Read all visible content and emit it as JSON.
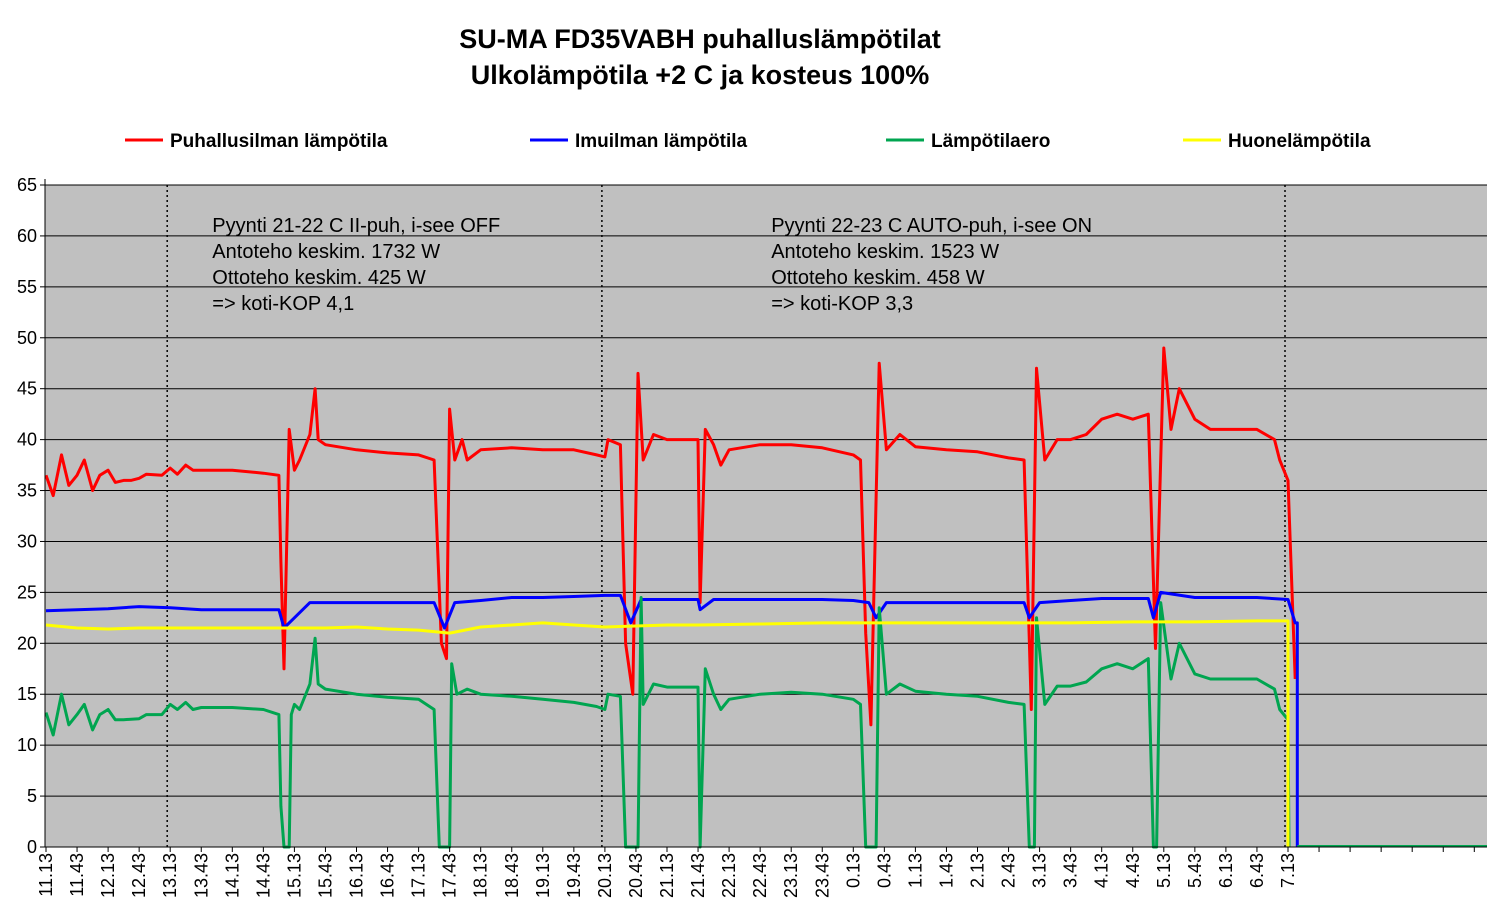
{
  "chart_data": {
    "type": "line",
    "title": "SU-MA FD35VABH puhalluslämpötilat",
    "subtitle": "Ulkolämpötila +2 C ja kosteus 100%",
    "ylim": [
      0,
      65
    ],
    "y_ticks": [
      0,
      5,
      10,
      15,
      20,
      25,
      30,
      35,
      40,
      45,
      50,
      55,
      60,
      65
    ],
    "x_time_ticks": [
      "11.13",
      "11.43",
      "12.13",
      "12.43",
      "13.13",
      "13.43",
      "14.13",
      "14.43",
      "15.13",
      "15.43",
      "16.13",
      "16.43",
      "17.13",
      "17.43",
      "18.13",
      "18.43",
      "19.13",
      "19.43",
      "20.13",
      "20.43",
      "21.13",
      "21.43",
      "22.13",
      "22.43",
      "23.13",
      "23.43",
      "0.13",
      "0.43",
      "1.13",
      "1.43",
      "2.13",
      "2.43",
      "3.13",
      "3.43",
      "4.13",
      "4.43",
      "5.13",
      "5.43",
      "6.13",
      "6.43",
      "7.13"
    ],
    "grid": true,
    "legend_position": "top",
    "markers_at": [
      "13.13",
      "20.13",
      "7.13"
    ],
    "annotations": [
      {
        "at": "14.13",
        "lines": [
          "Pyynti  21-22 C II-puh,  i-see OFF",
          "Antoteho keskim.  1732 W",
          "Ottoteho keskim.  425 W",
          "=> koti-KOP 4,1"
        ]
      },
      {
        "at": "23.13",
        "lines": [
          "Pyynti  22-23 C AUTO-puh,  i-see ON",
          "Antoteho keskim.  1523 W",
          "Ottoteho keskim.  458 W",
          "=> koti-KOP 3,3"
        ]
      }
    ],
    "series": [
      {
        "name": "Puhallusilman lämpötila",
        "color": "#ff0000",
        "points": [
          [
            "11.13",
            36.5
          ],
          [
            "11.20",
            34.5
          ],
          [
            "11.28",
            38.5
          ],
          [
            "11.35",
            35.5
          ],
          [
            "11.43",
            36.5
          ],
          [
            "11.50",
            38
          ],
          [
            "11.58",
            35
          ],
          [
            "12.05",
            36.5
          ],
          [
            "12.13",
            37
          ],
          [
            "12.20",
            35.8
          ],
          [
            "12.28",
            36
          ],
          [
            "12.35",
            36
          ],
          [
            "12.43",
            36.2
          ],
          [
            "12.50",
            36.6
          ],
          [
            "13.05",
            36.5
          ],
          [
            "13.13",
            37.2
          ],
          [
            "13.20",
            36.6
          ],
          [
            "13.28",
            37.5
          ],
          [
            "13.35",
            37
          ],
          [
            "13.43",
            37
          ],
          [
            "14.13",
            37
          ],
          [
            "14.43",
            36.7
          ],
          [
            "14.58",
            36.5
          ],
          [
            "15.00",
            28
          ],
          [
            "15.03",
            17.5
          ],
          [
            "15.08",
            41
          ],
          [
            "15.13",
            37
          ],
          [
            "15.18",
            38
          ],
          [
            "15.28",
            40.5
          ],
          [
            "15.33",
            45
          ],
          [
            "15.36",
            40
          ],
          [
            "15.43",
            39.5
          ],
          [
            "16.13",
            39
          ],
          [
            "16.43",
            38.7
          ],
          [
            "17.13",
            38.5
          ],
          [
            "17.28",
            38
          ],
          [
            "17.35",
            20
          ],
          [
            "17.40",
            18.5
          ],
          [
            "17.43",
            43
          ],
          [
            "17.48",
            38
          ],
          [
            "17.55",
            40
          ],
          [
            "18.00",
            38
          ],
          [
            "18.13",
            39
          ],
          [
            "18.43",
            39.2
          ],
          [
            "19.13",
            39
          ],
          [
            "19.43",
            39
          ],
          [
            "20.05",
            38.5
          ],
          [
            "20.13",
            38.3
          ],
          [
            "20.16",
            40
          ],
          [
            "20.28",
            39.5
          ],
          [
            "20.33",
            20
          ],
          [
            "20.40",
            15
          ],
          [
            "20.45",
            46.5
          ],
          [
            "20.50",
            38
          ],
          [
            "21.00",
            40.5
          ],
          [
            "21.13",
            40
          ],
          [
            "21.43",
            40
          ],
          [
            "21.45",
            24
          ],
          [
            "21.50",
            41
          ],
          [
            "21.58",
            39.5
          ],
          [
            "22.05",
            37.5
          ],
          [
            "22.13",
            39
          ],
          [
            "22.43",
            39.5
          ],
          [
            "23.13",
            39.5
          ],
          [
            "23.43",
            39.2
          ],
          [
            "0.13",
            38.5
          ],
          [
            "0.20",
            38
          ],
          [
            "0.25",
            21
          ],
          [
            "0.30",
            12
          ],
          [
            "0.38",
            47.5
          ],
          [
            "0.45",
            39
          ],
          [
            "0.58",
            40.5
          ],
          [
            "1.13",
            39.3
          ],
          [
            "1.43",
            39
          ],
          [
            "2.13",
            38.8
          ],
          [
            "2.43",
            38.2
          ],
          [
            "2.58",
            38
          ],
          [
            "3.05",
            13.5
          ],
          [
            "3.10",
            47
          ],
          [
            "3.18",
            38
          ],
          [
            "3.30",
            40
          ],
          [
            "3.43",
            40
          ],
          [
            "3.58",
            40.5
          ],
          [
            "4.13",
            42
          ],
          [
            "4.28",
            42.5
          ],
          [
            "4.43",
            42
          ],
          [
            "4.58",
            42.5
          ],
          [
            "5.05",
            19.5
          ],
          [
            "5.13",
            49
          ],
          [
            "5.20",
            41
          ],
          [
            "5.28",
            45
          ],
          [
            "5.43",
            42
          ],
          [
            "5.58",
            41
          ],
          [
            "6.13",
            41
          ],
          [
            "6.43",
            41
          ],
          [
            "7.00",
            40
          ],
          [
            "7.05",
            38
          ],
          [
            "7.13",
            36
          ],
          [
            "7.20",
            16.5
          ]
        ]
      },
      {
        "name": "Imuilman lämpötila",
        "color": "#0000ff",
        "points": [
          [
            "11.13",
            23.2
          ],
          [
            "11.43",
            23.3
          ],
          [
            "12.13",
            23.4
          ],
          [
            "12.43",
            23.6
          ],
          [
            "13.13",
            23.5
          ],
          [
            "13.43",
            23.3
          ],
          [
            "14.13",
            23.3
          ],
          [
            "14.43",
            23.3
          ],
          [
            "14.58",
            23.3
          ],
          [
            "15.03",
            21.5
          ],
          [
            "15.13",
            22.5
          ],
          [
            "15.28",
            24
          ],
          [
            "15.43",
            24
          ],
          [
            "16.13",
            24
          ],
          [
            "16.43",
            24
          ],
          [
            "17.13",
            24
          ],
          [
            "17.28",
            24
          ],
          [
            "17.38",
            21.5
          ],
          [
            "17.48",
            24
          ],
          [
            "18.13",
            24.2
          ],
          [
            "18.43",
            24.5
          ],
          [
            "19.13",
            24.5
          ],
          [
            "19.43",
            24.6
          ],
          [
            "20.13",
            24.7
          ],
          [
            "20.28",
            24.7
          ],
          [
            "20.38",
            22
          ],
          [
            "20.48",
            24.3
          ],
          [
            "21.13",
            24.3
          ],
          [
            "21.43",
            24.3
          ],
          [
            "21.45",
            23.3
          ],
          [
            "21.58",
            24.3
          ],
          [
            "22.43",
            24.3
          ],
          [
            "23.43",
            24.3
          ],
          [
            "0.13",
            24.2
          ],
          [
            "0.28",
            24
          ],
          [
            "0.35",
            22.5
          ],
          [
            "0.45",
            24
          ],
          [
            "1.13",
            24
          ],
          [
            "1.43",
            24
          ],
          [
            "2.13",
            24
          ],
          [
            "2.58",
            24
          ],
          [
            "3.03",
            22.5
          ],
          [
            "3.13",
            24
          ],
          [
            "3.43",
            24.2
          ],
          [
            "4.13",
            24.4
          ],
          [
            "4.43",
            24.4
          ],
          [
            "4.58",
            24.4
          ],
          [
            "5.03",
            22.5
          ],
          [
            "5.10",
            25
          ],
          [
            "5.43",
            24.5
          ],
          [
            "6.13",
            24.5
          ],
          [
            "6.43",
            24.5
          ],
          [
            "7.13",
            24.3
          ],
          [
            "7.20",
            22
          ],
          [
            "7.22",
            22
          ],
          [
            "7.22",
            0
          ]
        ]
      },
      {
        "name": "Lämpötilaero",
        "color": "#00a550",
        "points": [
          [
            "11.13",
            13.2
          ],
          [
            "11.20",
            11
          ],
          [
            "11.28",
            15
          ],
          [
            "11.35",
            12
          ],
          [
            "11.43",
            13
          ],
          [
            "11.50",
            14
          ],
          [
            "11.58",
            11.5
          ],
          [
            "12.05",
            13
          ],
          [
            "12.13",
            13.5
          ],
          [
            "12.20",
            12.5
          ],
          [
            "12.28",
            12.5
          ],
          [
            "12.43",
            12.6
          ],
          [
            "12.50",
            13
          ],
          [
            "13.05",
            13
          ],
          [
            "13.13",
            14
          ],
          [
            "13.20",
            13.5
          ],
          [
            "13.28",
            14.2
          ],
          [
            "13.35",
            13.5
          ],
          [
            "13.43",
            13.7
          ],
          [
            "14.13",
            13.7
          ],
          [
            "14.43",
            13.5
          ],
          [
            "14.58",
            13
          ],
          [
            "15.00",
            4
          ],
          [
            "15.03",
            0
          ],
          [
            "15.08",
            0
          ],
          [
            "15.10",
            13
          ],
          [
            "15.13",
            14
          ],
          [
            "15.18",
            13.5
          ],
          [
            "15.28",
            16
          ],
          [
            "15.33",
            20.5
          ],
          [
            "15.36",
            16
          ],
          [
            "15.43",
            15.5
          ],
          [
            "16.13",
            15
          ],
          [
            "16.43",
            14.7
          ],
          [
            "17.13",
            14.5
          ],
          [
            "17.28",
            13.5
          ],
          [
            "17.33",
            0
          ],
          [
            "17.43",
            0
          ],
          [
            "17.45",
            18
          ],
          [
            "17.50",
            15
          ],
          [
            "18.00",
            15.5
          ],
          [
            "18.13",
            15
          ],
          [
            "18.43",
            14.8
          ],
          [
            "19.13",
            14.5
          ],
          [
            "19.43",
            14.2
          ],
          [
            "20.05",
            13.8
          ],
          [
            "20.13",
            13.5
          ],
          [
            "20.16",
            15
          ],
          [
            "20.28",
            14.8
          ],
          [
            "20.33",
            0
          ],
          [
            "20.45",
            0
          ],
          [
            "20.48",
            24.5
          ],
          [
            "20.50",
            14
          ],
          [
            "21.00",
            16
          ],
          [
            "21.13",
            15.7
          ],
          [
            "21.43",
            15.7
          ],
          [
            "21.45",
            0
          ],
          [
            "21.50",
            17.5
          ],
          [
            "21.58",
            15
          ],
          [
            "22.05",
            13.5
          ],
          [
            "22.13",
            14.5
          ],
          [
            "22.43",
            15
          ],
          [
            "23.13",
            15.2
          ],
          [
            "23.43",
            15
          ],
          [
            "0.13",
            14.5
          ],
          [
            "0.20",
            14
          ],
          [
            "0.25",
            0
          ],
          [
            "0.35",
            0
          ],
          [
            "0.38",
            23.5
          ],
          [
            "0.45",
            15
          ],
          [
            "0.58",
            16
          ],
          [
            "1.13",
            15.3
          ],
          [
            "1.43",
            15
          ],
          [
            "2.13",
            14.8
          ],
          [
            "2.43",
            14.2
          ],
          [
            "2.58",
            14
          ],
          [
            "3.03",
            0
          ],
          [
            "3.08",
            0
          ],
          [
            "3.10",
            22.5
          ],
          [
            "3.18",
            14
          ],
          [
            "3.30",
            15.8
          ],
          [
            "3.43",
            15.8
          ],
          [
            "3.58",
            16.2
          ],
          [
            "4.13",
            17.5
          ],
          [
            "4.28",
            18
          ],
          [
            "4.43",
            17.5
          ],
          [
            "4.58",
            18.5
          ],
          [
            "5.03",
            0
          ],
          [
            "5.06",
            0
          ],
          [
            "5.10",
            24
          ],
          [
            "5.20",
            16.5
          ],
          [
            "5.28",
            20
          ],
          [
            "5.43",
            17
          ],
          [
            "5.58",
            16.5
          ],
          [
            "6.13",
            16.5
          ],
          [
            "6.43",
            16.5
          ],
          [
            "7.00",
            15.5
          ],
          [
            "7.05",
            13.5
          ],
          [
            "7.13",
            12.5
          ],
          [
            "7.14",
            0
          ]
        ]
      },
      {
        "name": "Huonelämpötila",
        "color": "#ffff00",
        "points": [
          [
            "11.13",
            21.8
          ],
          [
            "11.43",
            21.5
          ],
          [
            "12.13",
            21.4
          ],
          [
            "12.43",
            21.5
          ],
          [
            "13.13",
            21.5
          ],
          [
            "13.43",
            21.5
          ],
          [
            "14.13",
            21.5
          ],
          [
            "14.43",
            21.5
          ],
          [
            "15.13",
            21.5
          ],
          [
            "15.43",
            21.5
          ],
          [
            "16.13",
            21.6
          ],
          [
            "16.43",
            21.4
          ],
          [
            "17.13",
            21.3
          ],
          [
            "17.43",
            21
          ],
          [
            "18.13",
            21.6
          ],
          [
            "18.43",
            21.8
          ],
          [
            "19.13",
            22
          ],
          [
            "19.43",
            21.8
          ],
          [
            "20.13",
            21.6
          ],
          [
            "20.43",
            21.7
          ],
          [
            "21.13",
            21.8
          ],
          [
            "21.43",
            21.8
          ],
          [
            "22.43",
            21.9
          ],
          [
            "23.43",
            22
          ],
          [
            "0.43",
            22
          ],
          [
            "1.43",
            22
          ],
          [
            "2.43",
            22
          ],
          [
            "3.43",
            22
          ],
          [
            "4.43",
            22.1
          ],
          [
            "5.43",
            22.1
          ],
          [
            "6.43",
            22.2
          ],
          [
            "7.13",
            22.2
          ],
          [
            "7.13",
            0
          ]
        ]
      }
    ]
  }
}
